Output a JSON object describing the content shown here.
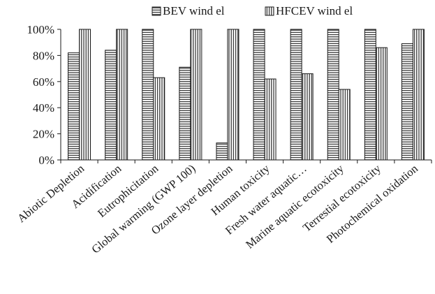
{
  "chart_data": {
    "type": "bar",
    "title": "",
    "xlabel": "",
    "ylabel": "",
    "ylim": [
      0,
      100
    ],
    "y_ticks": [
      "0%",
      "20%",
      "40%",
      "60%",
      "80%",
      "100%"
    ],
    "y_tick_values": [
      0,
      20,
      40,
      60,
      80,
      100
    ],
    "grid": false,
    "legend_position": "top",
    "categories": [
      "Abiotic Depletion",
      "Acidification",
      "Eutrophicitation",
      "Global warming (GWP 100)",
      "Ozone layer depletion",
      "Human toxicity",
      "Fresh water aquatic…",
      "Marine aquatic ecotoxicity",
      "Terrestial ecotoxicity",
      "Photochemical oxidation"
    ],
    "series": [
      {
        "name": "BEV wind el",
        "pattern": "horizontal-stripes",
        "values": [
          82,
          84,
          100,
          71,
          13,
          100,
          100,
          100,
          100,
          89
        ]
      },
      {
        "name": "HFCEV wind el",
        "pattern": "vertical-stripes",
        "values": [
          100,
          100,
          63,
          100,
          100,
          62,
          66,
          54,
          86,
          100
        ]
      }
    ],
    "colors": {
      "stroke": "#1a1a1a",
      "fill": "#ffffff"
    }
  }
}
